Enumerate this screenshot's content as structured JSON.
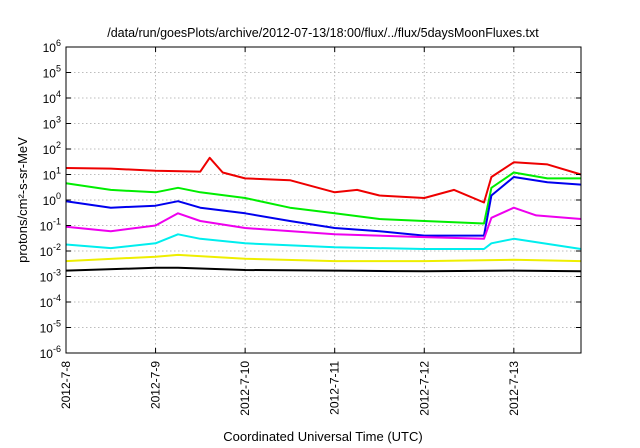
{
  "chart_data": {
    "type": "line",
    "title": "/data/run/goesPlots/archive/2012-07-13/18:00/flux/../flux/5daysMoonFluxes.txt",
    "xlabel": "Coordinated Universal Time (UTC)",
    "ylabel": "protons/cm²-s-sr-MeV",
    "y_scale": "log",
    "ylim": [
      1e-06,
      1000000.0
    ],
    "y_ticks": [
      {
        "value": 1e-06,
        "base": "10",
        "exp": "-6"
      },
      {
        "value": 1e-05,
        "base": "10",
        "exp": "-5"
      },
      {
        "value": 0.0001,
        "base": "10",
        "exp": "-4"
      },
      {
        "value": 0.001,
        "base": "10",
        "exp": "-3"
      },
      {
        "value": 0.01,
        "base": "10",
        "exp": "-2"
      },
      {
        "value": 0.1,
        "base": "10",
        "exp": "-1"
      },
      {
        "value": 1,
        "base": "10",
        "exp": "0"
      },
      {
        "value": 10.0,
        "base": "10",
        "exp": "1"
      },
      {
        "value": 100.0,
        "base": "10",
        "exp": "2"
      },
      {
        "value": 1000.0,
        "base": "10",
        "exp": "3"
      },
      {
        "value": 10000.0,
        "base": "10",
        "exp": "4"
      },
      {
        "value": 100000.0,
        "base": "10",
        "exp": "5"
      },
      {
        "value": 1000000.0,
        "base": "10",
        "exp": "6"
      }
    ],
    "x_ticks": [
      "2012-7-8",
      "2012-7-9",
      "2012-7-10",
      "2012-7-11",
      "2012-7-12",
      "2012-7-13"
    ],
    "xlim": [
      "2012-07-08T00:00",
      "2012-07-13T18:00"
    ],
    "grid": true,
    "series": [
      {
        "color": "#ee0000",
        "points": [
          [
            "2012-07-08T00:00",
            18
          ],
          [
            "2012-07-08T12:00",
            17
          ],
          [
            "2012-07-09T00:00",
            14
          ],
          [
            "2012-07-09T12:00",
            13
          ],
          [
            "2012-07-09T14:30",
            45
          ],
          [
            "2012-07-09T18:00",
            12
          ],
          [
            "2012-07-10T00:00",
            7
          ],
          [
            "2012-07-10T12:00",
            6
          ],
          [
            "2012-07-11T00:00",
            2
          ],
          [
            "2012-07-11T06:00",
            2.5
          ],
          [
            "2012-07-11T12:00",
            1.5
          ],
          [
            "2012-07-12T00:00",
            1.2
          ],
          [
            "2012-07-12T08:00",
            2.5
          ],
          [
            "2012-07-12T16:00",
            0.8
          ],
          [
            "2012-07-12T18:00",
            8
          ],
          [
            "2012-07-13T00:00",
            30
          ],
          [
            "2012-07-13T09:00",
            25
          ],
          [
            "2012-07-13T18:00",
            10
          ]
        ]
      },
      {
        "color": "#00ee00",
        "points": [
          [
            "2012-07-08T00:00",
            4.5
          ],
          [
            "2012-07-08T12:00",
            2.5
          ],
          [
            "2012-07-09T00:00",
            2
          ],
          [
            "2012-07-09T06:00",
            3
          ],
          [
            "2012-07-09T12:00",
            2
          ],
          [
            "2012-07-10T00:00",
            1.2
          ],
          [
            "2012-07-10T12:00",
            0.5
          ],
          [
            "2012-07-11T00:00",
            0.3
          ],
          [
            "2012-07-11T12:00",
            0.18
          ],
          [
            "2012-07-12T00:00",
            0.15
          ],
          [
            "2012-07-12T16:00",
            0.12
          ],
          [
            "2012-07-12T18:00",
            3
          ],
          [
            "2012-07-13T00:00",
            12
          ],
          [
            "2012-07-13T09:00",
            7
          ],
          [
            "2012-07-13T18:00",
            7
          ]
        ]
      },
      {
        "color": "#0000ee",
        "points": [
          [
            "2012-07-08T00:00",
            0.9
          ],
          [
            "2012-07-08T12:00",
            0.5
          ],
          [
            "2012-07-09T00:00",
            0.6
          ],
          [
            "2012-07-09T06:00",
            0.9
          ],
          [
            "2012-07-09T12:00",
            0.5
          ],
          [
            "2012-07-10T00:00",
            0.3
          ],
          [
            "2012-07-10T12:00",
            0.15
          ],
          [
            "2012-07-11T00:00",
            0.08
          ],
          [
            "2012-07-11T12:00",
            0.06
          ],
          [
            "2012-07-12T00:00",
            0.04
          ],
          [
            "2012-07-12T16:00",
            0.04
          ],
          [
            "2012-07-12T18:00",
            1.5
          ],
          [
            "2012-07-13T00:00",
            8
          ],
          [
            "2012-07-13T09:00",
            5
          ],
          [
            "2012-07-13T18:00",
            4
          ]
        ]
      },
      {
        "color": "#ee00ee",
        "points": [
          [
            "2012-07-08T00:00",
            0.09
          ],
          [
            "2012-07-08T12:00",
            0.06
          ],
          [
            "2012-07-09T00:00",
            0.1
          ],
          [
            "2012-07-09T06:00",
            0.3
          ],
          [
            "2012-07-09T12:00",
            0.15
          ],
          [
            "2012-07-10T00:00",
            0.08
          ],
          [
            "2012-07-11T00:00",
            0.045
          ],
          [
            "2012-07-12T00:00",
            0.035
          ],
          [
            "2012-07-12T16:00",
            0.03
          ],
          [
            "2012-07-12T18:00",
            0.2
          ],
          [
            "2012-07-13T00:00",
            0.5
          ],
          [
            "2012-07-13T06:00",
            0.25
          ],
          [
            "2012-07-13T18:00",
            0.18
          ]
        ]
      },
      {
        "color": "#00eeee",
        "points": [
          [
            "2012-07-08T00:00",
            0.018
          ],
          [
            "2012-07-08T12:00",
            0.013
          ],
          [
            "2012-07-09T00:00",
            0.02
          ],
          [
            "2012-07-09T06:00",
            0.045
          ],
          [
            "2012-07-09T12:00",
            0.03
          ],
          [
            "2012-07-10T00:00",
            0.02
          ],
          [
            "2012-07-11T00:00",
            0.014
          ],
          [
            "2012-07-12T00:00",
            0.012
          ],
          [
            "2012-07-12T16:00",
            0.012
          ],
          [
            "2012-07-12T18:00",
            0.02
          ],
          [
            "2012-07-13T00:00",
            0.03
          ],
          [
            "2012-07-13T18:00",
            0.012
          ]
        ]
      },
      {
        "color": "#eeee00",
        "points": [
          [
            "2012-07-08T00:00",
            0.004
          ],
          [
            "2012-07-09T00:00",
            0.006
          ],
          [
            "2012-07-09T06:00",
            0.007
          ],
          [
            "2012-07-10T00:00",
            0.005
          ],
          [
            "2012-07-11T00:00",
            0.004
          ],
          [
            "2012-07-12T00:00",
            0.004
          ],
          [
            "2012-07-13T00:00",
            0.0045
          ],
          [
            "2012-07-13T18:00",
            0.004
          ]
        ]
      },
      {
        "color": "#000000",
        "points": [
          [
            "2012-07-08T00:00",
            0.0017
          ],
          [
            "2012-07-09T00:00",
            0.0022
          ],
          [
            "2012-07-09T06:00",
            0.0022
          ],
          [
            "2012-07-10T00:00",
            0.0018
          ],
          [
            "2012-07-11T00:00",
            0.0017
          ],
          [
            "2012-07-12T00:00",
            0.0016
          ],
          [
            "2012-07-13T00:00",
            0.0017
          ],
          [
            "2012-07-13T18:00",
            0.0016
          ]
        ]
      }
    ]
  }
}
